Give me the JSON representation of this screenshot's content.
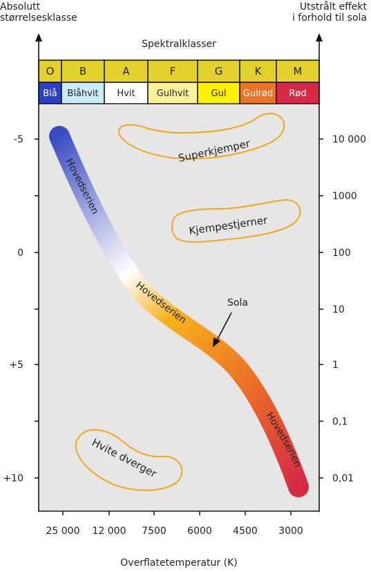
{
  "left_axis_label": [
    "Absolutt",
    "størrelsesklasse"
  ],
  "right_axis_label": [
    "Utstrålt effekt",
    "i forhold til sola"
  ],
  "spectral_title": "Spektralklasser",
  "spectral_classes": [
    {
      "letter": "O",
      "color_name": "Blå",
      "color": "#2b40c7",
      "text_color": "#ffffff"
    },
    {
      "letter": "B",
      "color_name": "Blåhvit",
      "color": "#c9ecf7",
      "text_color": "#222222"
    },
    {
      "letter": "A",
      "color_name": "Hvit",
      "color": "#ffffff",
      "text_color": "#222222"
    },
    {
      "letter": "F",
      "color_name": "Gulhvit",
      "color": "#fbf29c",
      "text_color": "#222222"
    },
    {
      "letter": "G",
      "color_name": "Gul",
      "color": "#fff200",
      "text_color": "#222222"
    },
    {
      "letter": "K",
      "color_name": "Gulrød",
      "color": "#ec7424",
      "text_color": "#ffffff"
    },
    {
      "letter": "M",
      "color_name": "Rød",
      "color": "#d42a45",
      "text_color": "#ffffff"
    }
  ],
  "class_header_color": "#e3d22d",
  "magnitude_ticks": [
    "-5",
    "0",
    "+5",
    "+10"
  ],
  "luminosity_ticks": [
    "10 000",
    "1000",
    "100",
    "10",
    "1",
    "0,1",
    "0,01"
  ],
  "temperature_ticks": [
    "25 000",
    "12 000",
    "7500",
    "6000",
    "4500",
    "3000"
  ],
  "x_axis_label": "Overflatetemperatur (K)",
  "regions": {
    "supergiants": "Superkjemper",
    "giants": "Kjempestjerner",
    "white_dwarfs": "Hvite dverger"
  },
  "main_sequence_label": "Hovedserien",
  "sun_label": "Sola",
  "colors": {
    "background": "#e6e6e6",
    "region_outline": "#f0a818",
    "seq_blue": "#3b4cc0",
    "seq_white": "#ffffff",
    "seq_yellow": "#f6b21e",
    "seq_orange": "#ec7424",
    "seq_red": "#d42a45"
  }
}
